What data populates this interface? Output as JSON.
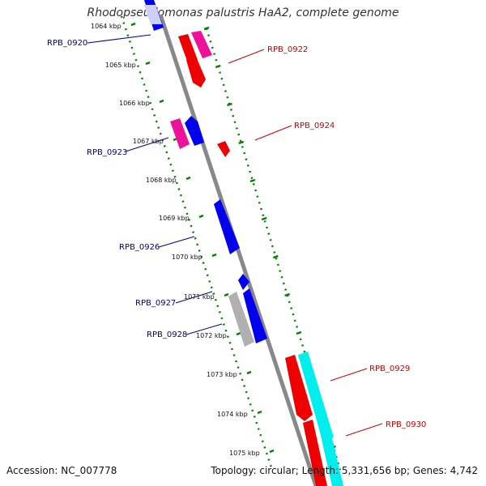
{
  "header": {
    "title": "Rhodopseudomonas palustris HaA2, complete genome"
  },
  "footer": {
    "accession": "Accession: NC_007778",
    "topology": "Topology: circular; Length: 5,331,656 bp; Genes: 4,742"
  },
  "colors": {
    "backbone": "#888888",
    "ticks": "#008000",
    "gene_blue": "#0000ee",
    "gene_red": "#ee0000",
    "gene_magenta": "#ee1199",
    "gene_cyan": "#00eeee",
    "gene_gray": "#b0b0b0",
    "label_blue": "#00008b",
    "label_red": "#cc0000"
  },
  "scale_labels": [
    "1064 kbp",
    "1065 kbp",
    "1066 kbp",
    "1067 kbp",
    "1068 kbp",
    "1069 kbp",
    "1070 kbp",
    "1071 kbp",
    "1072 kbp",
    "1073 kbp",
    "1074 kbp",
    "1075 kbp"
  ],
  "gene_labels": {
    "left": [
      "RPB_0920",
      "RPB_0923",
      "RPB_0926",
      "RPB_0927",
      "RPB_0928"
    ],
    "right": [
      "RPB_0922",
      "RPB_0924",
      "RPB_0929",
      "RPB_0930"
    ]
  }
}
